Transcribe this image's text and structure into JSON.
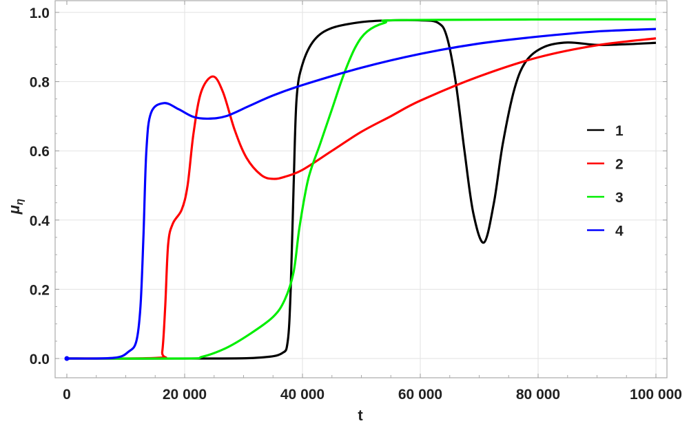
{
  "chart_data": {
    "type": "line",
    "title": "",
    "xlabel": "t",
    "ylabel": "μ",
    "ylabel_subscript": "η",
    "xlim": [
      0,
      100000
    ],
    "ylim": [
      0,
      1
    ],
    "grid": true,
    "legend_position": "right",
    "x_ticks": [
      0,
      20000,
      40000,
      60000,
      80000,
      100000
    ],
    "x_tick_labels": [
      "0",
      "20 000",
      "40 000",
      "60 000",
      "80 000",
      "100 000"
    ],
    "y_ticks": [
      0,
      0.2,
      0.4,
      0.6,
      0.8,
      1.0
    ],
    "y_tick_labels": [
      "0.0",
      "0.2",
      "0.4",
      "0.6",
      "0.8",
      "1.0"
    ],
    "series": [
      {
        "name": "1",
        "color": "#000000",
        "x": [
          0,
          25000,
          33000,
          36500,
          37500,
          38000,
          38500,
          39000,
          40000,
          42000,
          45000,
          50000,
          55000,
          60000,
          63000,
          64500,
          66000,
          67500,
          69000,
          70800,
          72500,
          74000,
          76000,
          78000,
          81000,
          85000,
          90000,
          95000,
          100000
        ],
        "y": [
          0,
          0,
          0.003,
          0.015,
          0.05,
          0.2,
          0.5,
          0.75,
          0.85,
          0.92,
          0.955,
          0.972,
          0.977,
          0.977,
          0.97,
          0.93,
          0.8,
          0.6,
          0.42,
          0.335,
          0.45,
          0.62,
          0.78,
          0.86,
          0.9,
          0.913,
          0.906,
          0.908,
          0.912
        ]
      },
      {
        "name": "2",
        "color": "#ff0000",
        "x": [
          0,
          15500,
          16200,
          16700,
          17200,
          18000,
          19500,
          20500,
          21500,
          22800,
          24800,
          26500,
          28500,
          30500,
          33000,
          35000,
          37000,
          40000,
          45000,
          50000,
          55000,
          60000,
          70000,
          80000,
          90000,
          100000
        ],
        "y": [
          0,
          0.002,
          0.02,
          0.15,
          0.33,
          0.39,
          0.43,
          0.5,
          0.65,
          0.77,
          0.815,
          0.77,
          0.66,
          0.58,
          0.53,
          0.519,
          0.525,
          0.545,
          0.6,
          0.655,
          0.7,
          0.745,
          0.815,
          0.87,
          0.905,
          0.925
        ]
      },
      {
        "name": "3",
        "color": "#00ee00",
        "x": [
          0,
          20000,
          23000,
          27000,
          31000,
          35000,
          37000,
          38500,
          39500,
          41000,
          43000,
          45000,
          47000,
          49000,
          51000,
          54000,
          58000,
          100000
        ],
        "y": [
          0,
          0,
          0.005,
          0.03,
          0.07,
          0.12,
          0.17,
          0.25,
          0.38,
          0.52,
          0.62,
          0.72,
          0.82,
          0.9,
          0.945,
          0.97,
          0.978,
          0.98
        ]
      },
      {
        "name": "4",
        "color": "#0000ff",
        "x": [
          0,
          8000,
          10500,
          11800,
          12500,
          13000,
          13500,
          14300,
          16500,
          19000,
          21500,
          24000,
          27000,
          31000,
          35000,
          40000,
          50000,
          60000,
          70000,
          80000,
          90000,
          100000
        ],
        "y": [
          0,
          0.002,
          0.02,
          0.05,
          0.15,
          0.35,
          0.6,
          0.71,
          0.738,
          0.72,
          0.698,
          0.693,
          0.7,
          0.73,
          0.76,
          0.79,
          0.84,
          0.88,
          0.91,
          0.93,
          0.945,
          0.952
        ]
      }
    ]
  }
}
